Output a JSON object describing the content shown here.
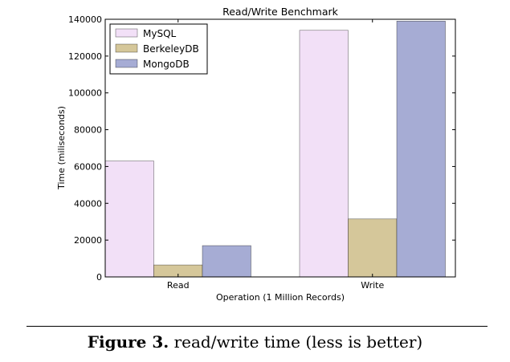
{
  "chart_data": {
    "type": "bar",
    "title": "Read/Write Benchmark",
    "xlabel": "Operation (1 Million Records)",
    "ylabel": "Time (miliseconds)",
    "categories": [
      "Read",
      "Write"
    ],
    "series": [
      {
        "name": "MySQL",
        "values": [
          63000,
          134000
        ],
        "color": "#f2e0f7"
      },
      {
        "name": "BerkeleyDB",
        "values": [
          6500,
          31500
        ],
        "color": "#d5c79a"
      },
      {
        "name": "MongoDB",
        "values": [
          17000,
          139000
        ],
        "color": "#a6acd4"
      }
    ],
    "ylim": [
      0,
      140000
    ],
    "yticks": [
      0,
      20000,
      40000,
      60000,
      80000,
      100000,
      120000,
      140000
    ],
    "ytick_labels": [
      "0",
      "20000",
      "40000",
      "60000",
      "80000",
      "100000",
      "120000",
      "140000"
    ],
    "legend_position": "top-left",
    "grid": false
  },
  "caption": {
    "label": "Figure 3.",
    "text": "read/write time (less is better)"
  }
}
